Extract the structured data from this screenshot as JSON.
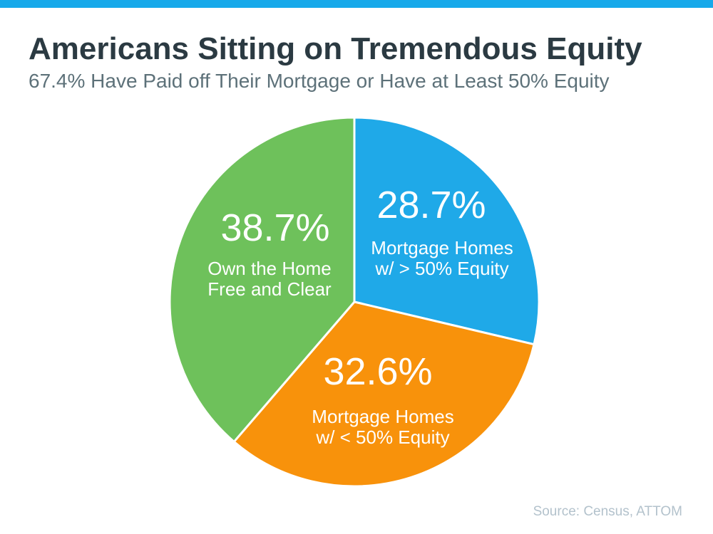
{
  "theme": {
    "top_bar_color": "#17a9ea",
    "background_color": "#ffffff",
    "title_color": "#2b3a42",
    "subtitle_color": "#5d7179",
    "slice_text_color": "#ffffff",
    "source_color": "#b3c2cc"
  },
  "header": {
    "title": "Americans Sitting on Tremendous Equity",
    "subtitle": "67.4% Have Paid off Their Mortgage or Have at Least 50% Equity"
  },
  "chart_data": {
    "type": "pie",
    "title": "Americans Sitting on Tremendous Equity",
    "subtitle": "67.4% Have Paid off Their Mortgage or Have at Least 50% Equity",
    "start_angle_deg": 0,
    "direction": "clockwise",
    "slice_separator_color": "#ffffff",
    "slices": [
      {
        "id": "mortgage-gt-50-equity",
        "value": 28.7,
        "display_value": "28.7%",
        "label": "Mortgage Homes w/ > 50% Equity",
        "label_lines": [
          "Mortgage Homes",
          "w/ > 50% Equity"
        ],
        "color": "#1fa9e8"
      },
      {
        "id": "mortgage-lt-50-equity",
        "value": 32.6,
        "display_value": "32.6%",
        "label": "Mortgage Homes w/ < 50% Equity",
        "label_lines": [
          "Mortgage Homes",
          "w/ < 50% Equity"
        ],
        "color": "#f8920b"
      },
      {
        "id": "own-free-and-clear",
        "value": 38.7,
        "display_value": "38.7%",
        "label": "Own the Home Free and Clear",
        "label_lines": [
          "Own the Home",
          "Free and Clear"
        ],
        "color": "#6ec15b"
      }
    ]
  },
  "footer": {
    "source": "Source: Census, ATTOM"
  }
}
